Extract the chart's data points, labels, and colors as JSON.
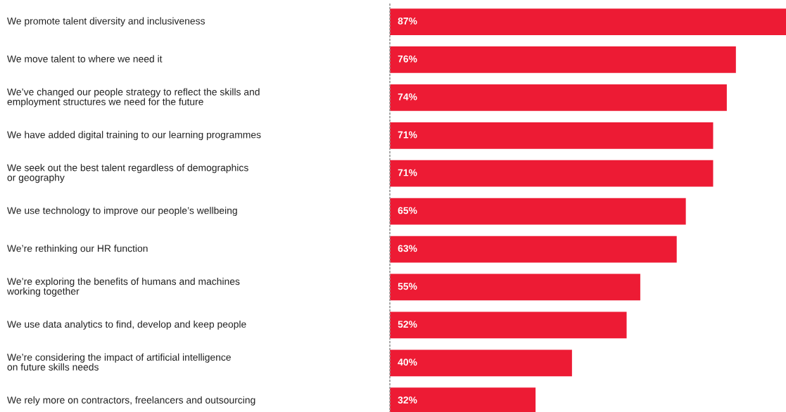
{
  "chart_data": {
    "type": "bar",
    "orientation": "horizontal",
    "categories": [
      "We promote talent diversity and inclusiveness",
      "We move talent to where we need it",
      "We’ve changed our people strategy to reflect the skills and\nemployment structures we need for the future",
      "We have added digital training to our learning programmes",
      "We seek out the best talent regardless of demographics\nor geography",
      "We use technology to improve our people’s wellbeing",
      "We’re rethinking our HR function",
      "We’re exploring the benefits of humans and machines\nworking together",
      "We use data analytics to find, develop and keep people",
      "We’re considering the impact of artificial intelligence\non future skills needs",
      "We rely more on contractors, freelancers and outsourcing"
    ],
    "values": [
      87,
      76,
      74,
      71,
      71,
      65,
      63,
      55,
      52,
      40,
      32
    ],
    "value_labels": [
      "87%",
      "76%",
      "74%",
      "71%",
      "71%",
      "65%",
      "63%",
      "55%",
      "52%",
      "40%",
      "32%"
    ],
    "color": "#ed1b34"
  }
}
